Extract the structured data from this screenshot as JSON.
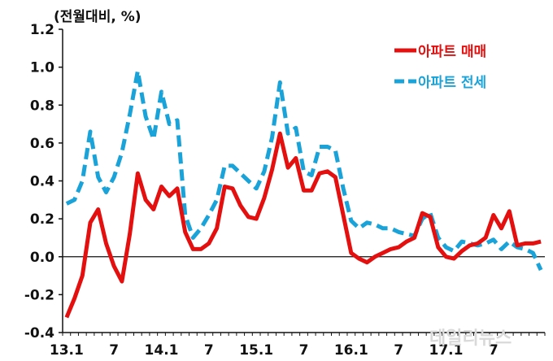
{
  "chart_data": {
    "type": "line",
    "unit_label": "(전월대비, %)",
    "x_tick_labels": [
      "13.1",
      "7",
      "14.1",
      "7",
      "15.1",
      "7",
      "16.1",
      "7",
      "17.1",
      "7"
    ],
    "x_tick_positions": [
      0,
      6,
      12,
      18,
      24,
      30,
      36,
      42,
      48,
      54
    ],
    "x_count": 61,
    "ylim": [
      -0.4,
      1.2
    ],
    "y_ticks": [
      -0.4,
      -0.2,
      0.0,
      0.2,
      0.4,
      0.6,
      0.8,
      1.0,
      1.2
    ],
    "y_tick_labels": [
      "-0.4",
      "-0.2",
      "0.0",
      "0.2",
      "0.4",
      "0.6",
      "0.8",
      "1.0",
      "1.2"
    ],
    "grid": false,
    "legend_position": "top-right",
    "series": [
      {
        "name": "아파트 매매",
        "color": "#e3100f",
        "dash": "solid",
        "values": [
          -0.32,
          -0.22,
          -0.1,
          0.18,
          0.25,
          0.07,
          -0.05,
          -0.13,
          0.12,
          0.44,
          0.3,
          0.25,
          0.37,
          0.32,
          0.36,
          0.13,
          0.04,
          0.04,
          0.07,
          0.15,
          0.37,
          0.36,
          0.27,
          0.21,
          0.2,
          0.31,
          0.46,
          0.65,
          0.47,
          0.52,
          0.35,
          0.35,
          0.44,
          0.45,
          0.42,
          0.22,
          0.02,
          -0.01,
          -0.03,
          0.0,
          0.02,
          0.04,
          0.05,
          0.08,
          0.1,
          0.23,
          0.21,
          0.05,
          0.0,
          -0.01,
          0.03,
          0.06,
          0.07,
          0.1,
          0.22,
          0.15,
          0.24,
          0.06,
          0.07,
          0.07,
          0.08
        ]
      },
      {
        "name": "아파트 전세",
        "color": "#1aa3d8",
        "dash": "dashed",
        "values": [
          0.28,
          0.3,
          0.4,
          0.66,
          0.42,
          0.34,
          0.42,
          0.55,
          0.75,
          0.98,
          0.74,
          0.62,
          0.87,
          0.7,
          0.72,
          0.22,
          0.1,
          0.15,
          0.22,
          0.3,
          0.48,
          0.48,
          0.44,
          0.4,
          0.36,
          0.45,
          0.63,
          0.92,
          0.65,
          0.68,
          0.45,
          0.43,
          0.58,
          0.58,
          0.56,
          0.36,
          0.19,
          0.15,
          0.18,
          0.17,
          0.15,
          0.15,
          0.13,
          0.12,
          0.11,
          0.2,
          0.23,
          0.1,
          0.05,
          0.03,
          0.08,
          0.07,
          0.06,
          0.07,
          0.09,
          0.04,
          0.08,
          0.05,
          0.04,
          0.02,
          -0.07
        ]
      }
    ]
  },
  "watermark": "데일리뉴스"
}
